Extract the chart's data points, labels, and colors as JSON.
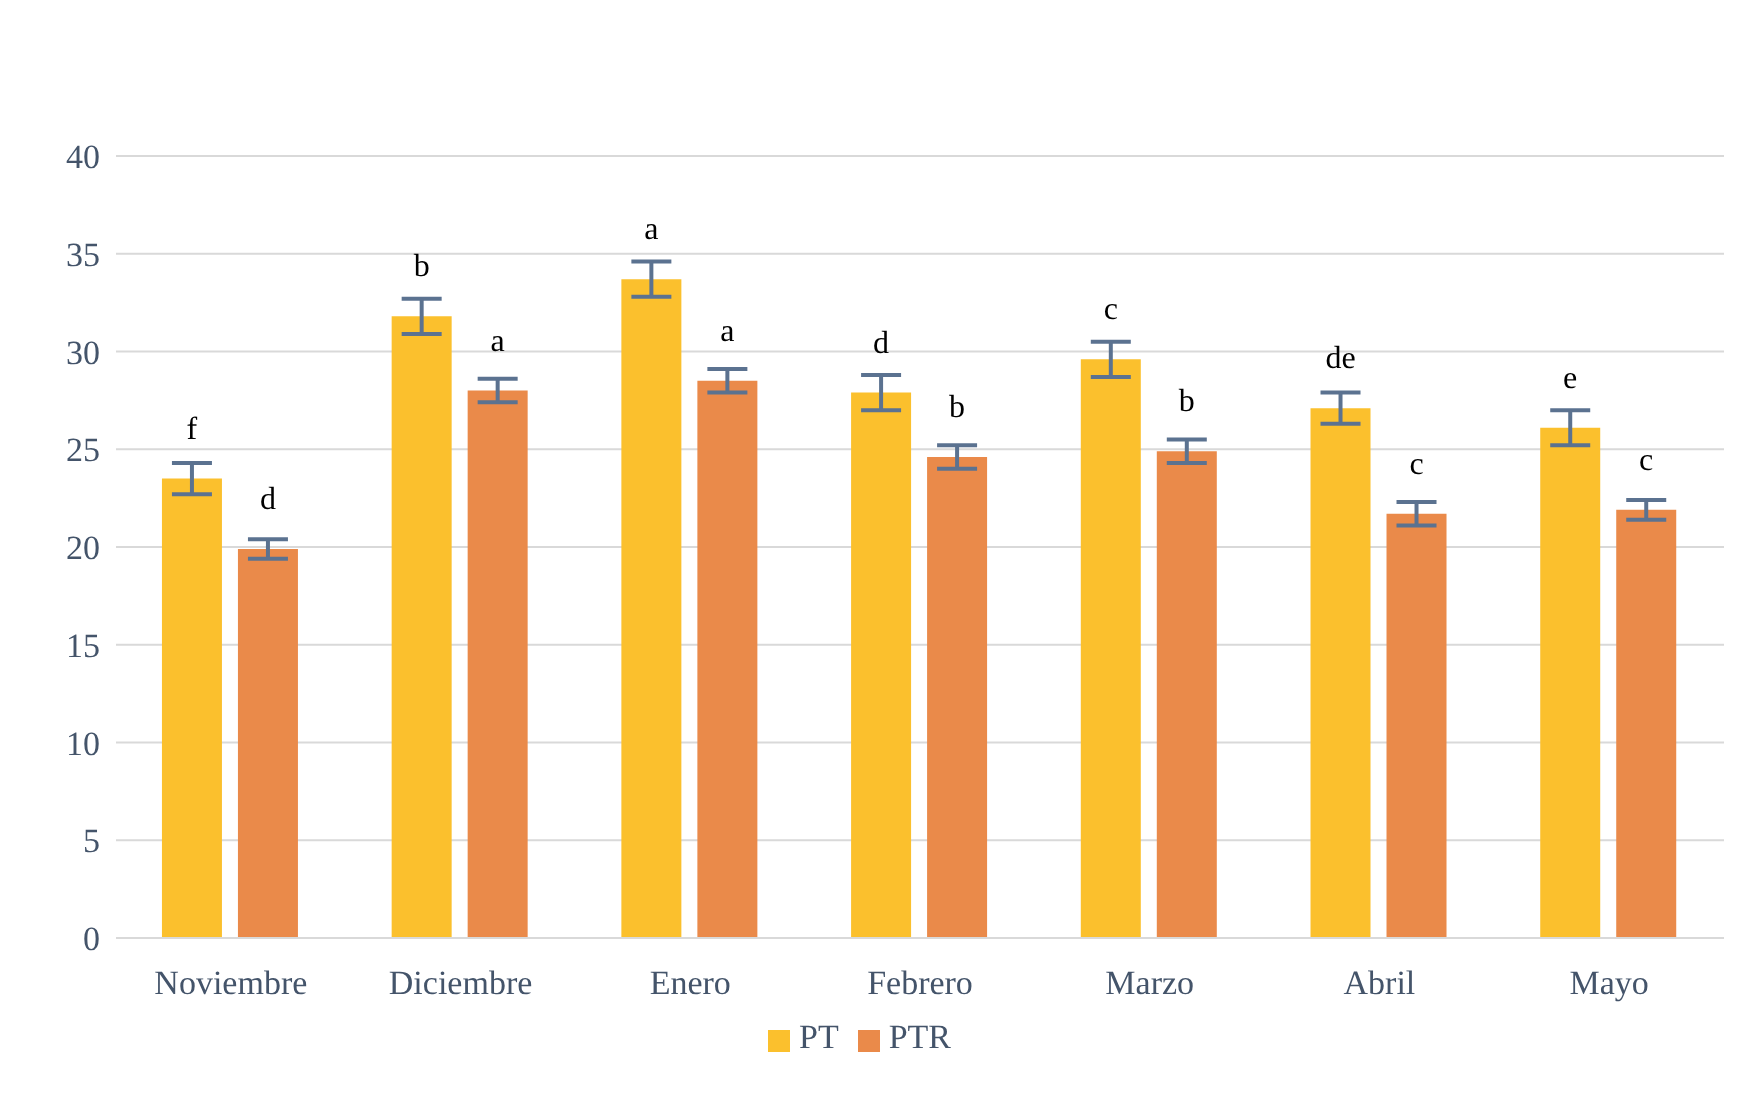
{
  "chart_data": {
    "type": "bar",
    "categories": [
      "Noviembre",
      "Diciembre",
      "Enero",
      "Febrero",
      "Marzo",
      "Abril",
      "Mayo"
    ],
    "series": [
      {
        "name": "PT",
        "color": "#fbc02d",
        "values": [
          23.5,
          31.8,
          33.7,
          27.9,
          29.6,
          27.1,
          26.1
        ],
        "errors": [
          0.8,
          0.9,
          0.9,
          0.9,
          0.9,
          0.8,
          0.9
        ],
        "value_labels": [
          "f",
          "b",
          "a",
          "d",
          "c",
          "de",
          "e"
        ]
      },
      {
        "name": "PTR",
        "color": "#ea8a4a",
        "values": [
          19.9,
          28.0,
          28.5,
          24.6,
          24.9,
          21.7,
          21.9
        ],
        "errors": [
          0.5,
          0.6,
          0.6,
          0.6,
          0.6,
          0.6,
          0.5
        ],
        "value_labels": [
          "d",
          "a",
          "a",
          "b",
          "b",
          "c",
          "c"
        ]
      }
    ],
    "ylim": [
      0,
      40
    ],
    "yticks": [
      0,
      5,
      10,
      15,
      20,
      25,
      30,
      35,
      40
    ],
    "grid": "y",
    "legend": "bottom"
  }
}
